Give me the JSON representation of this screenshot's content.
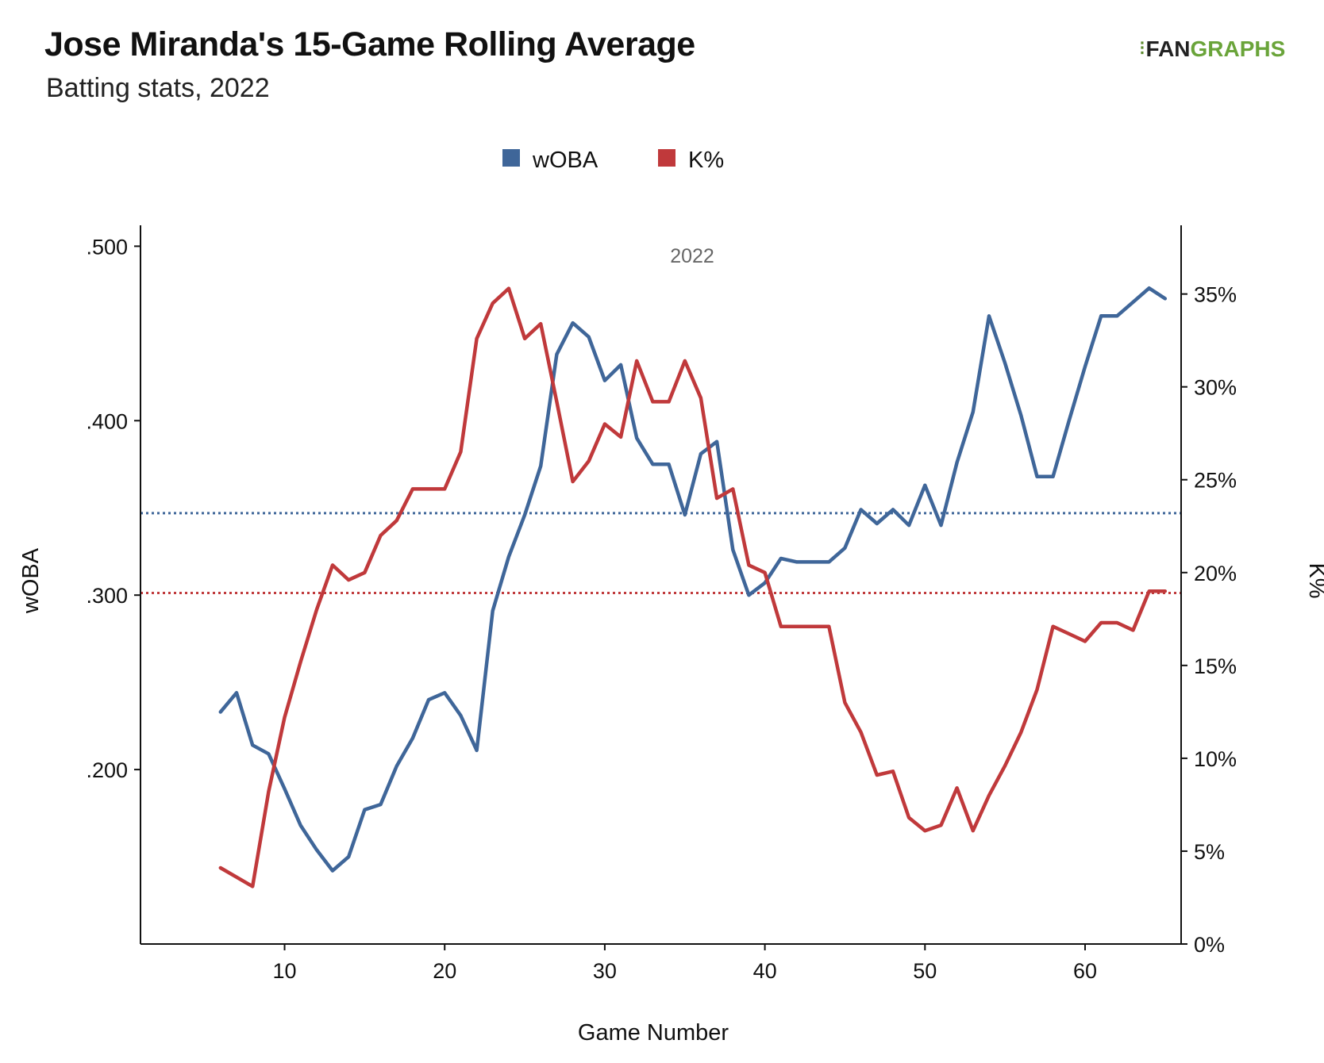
{
  "header": {
    "title": "Jose Miranda's 15-Game Rolling Average",
    "subtitle": "Batting stats, 2022",
    "logo_fan": "FAN",
    "logo_graphs": "GRAPHS"
  },
  "chart_data": {
    "type": "line",
    "annotation": "2022",
    "xlabel": "Game Number",
    "ylabel_left": "wOBA",
    "ylabel_right": "K%",
    "xlim": [
      1,
      66
    ],
    "ylim_left": [
      0.1,
      0.512
    ],
    "ylim_right": [
      0,
      38.7
    ],
    "x_ticks": [
      10,
      20,
      30,
      40,
      50,
      60
    ],
    "left_ticks": [
      {
        "value": 0.2,
        "label": ".200"
      },
      {
        "value": 0.3,
        "label": ".300"
      },
      {
        "value": 0.4,
        "label": ".400"
      },
      {
        "value": 0.5,
        "label": ".500"
      }
    ],
    "right_ticks": [
      {
        "value": 0,
        "label": "0%"
      },
      {
        "value": 5,
        "label": "5%"
      },
      {
        "value": 10,
        "label": "10%"
      },
      {
        "value": 15,
        "label": "15%"
      },
      {
        "value": 20,
        "label": "20%"
      },
      {
        "value": 25,
        "label": "25%"
      },
      {
        "value": 30,
        "label": "30%"
      },
      {
        "value": 35,
        "label": "35%"
      }
    ],
    "legend_position": "top-center",
    "grid": false,
    "series": [
      {
        "name": "wOBA",
        "axis": "left",
        "color": "#3f6699",
        "average": 0.347,
        "x": [
          6,
          7,
          8,
          9,
          10,
          11,
          12,
          13,
          14,
          15,
          16,
          17,
          18,
          19,
          20,
          21,
          22,
          23,
          24,
          25,
          26,
          27,
          28,
          29,
          30,
          31,
          32,
          33,
          34,
          35,
          36,
          37,
          38,
          39,
          40,
          41,
          42,
          43,
          44,
          45,
          46,
          47,
          48,
          49,
          50,
          51,
          52,
          53,
          54,
          55,
          56,
          57,
          58,
          59,
          60,
          61,
          62,
          63,
          64,
          65
        ],
        "values": [
          0.233,
          0.244,
          0.214,
          0.209,
          0.189,
          0.168,
          0.154,
          0.142,
          0.15,
          0.177,
          0.18,
          0.202,
          0.218,
          0.24,
          0.244,
          0.231,
          0.211,
          0.291,
          0.322,
          0.346,
          0.374,
          0.438,
          0.456,
          0.448,
          0.423,
          0.432,
          0.39,
          0.375,
          0.375,
          0.346,
          0.381,
          0.388,
          0.326,
          0.3,
          0.307,
          0.321,
          0.319,
          0.319,
          0.319,
          0.327,
          0.349,
          0.341,
          0.349,
          0.34,
          0.363,
          0.34,
          0.376,
          0.405,
          0.46,
          0.433,
          0.403,
          0.368,
          0.368,
          0.4,
          0.431,
          0.46,
          0.46,
          0.468,
          0.476,
          0.47
        ]
      },
      {
        "name": "K%",
        "axis": "right",
        "color": "#c0393b",
        "average": 18.9,
        "x": [
          6,
          7,
          8,
          9,
          10,
          11,
          12,
          13,
          14,
          15,
          16,
          17,
          18,
          19,
          20,
          21,
          22,
          23,
          24,
          25,
          26,
          27,
          28,
          29,
          30,
          31,
          32,
          33,
          34,
          35,
          36,
          37,
          38,
          39,
          40,
          41,
          42,
          43,
          44,
          45,
          46,
          47,
          48,
          49,
          50,
          51,
          52,
          53,
          54,
          55,
          56,
          57,
          58,
          59,
          60,
          61,
          62,
          63,
          64,
          65
        ],
        "values": [
          4.1,
          3.6,
          3.1,
          8.2,
          12.2,
          15.2,
          18.0,
          20.4,
          19.6,
          20.0,
          22.0,
          22.8,
          24.5,
          24.5,
          24.5,
          26.5,
          32.6,
          34.5,
          35.3,
          32.6,
          33.4,
          29.2,
          24.9,
          26.0,
          28.0,
          27.3,
          31.4,
          29.2,
          29.2,
          31.4,
          29.4,
          24.0,
          24.5,
          20.4,
          20.0,
          17.1,
          17.1,
          17.1,
          17.1,
          13.0,
          11.4,
          9.1,
          9.3,
          6.8,
          6.1,
          6.4,
          8.4,
          6.1,
          8.0,
          9.6,
          11.4,
          13.7,
          17.1,
          16.7,
          16.3,
          17.3,
          17.3,
          16.9,
          19.0,
          19.0
        ]
      }
    ]
  }
}
